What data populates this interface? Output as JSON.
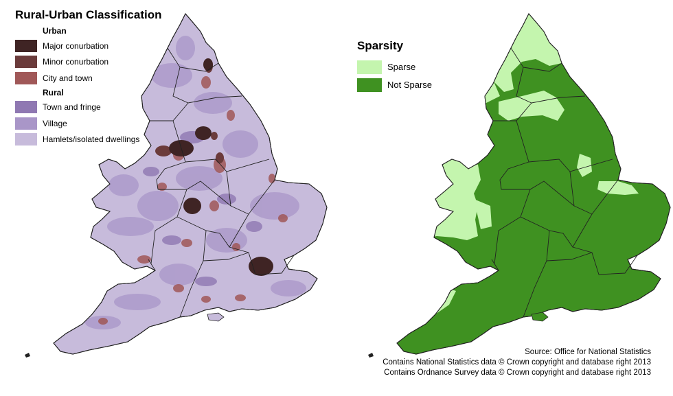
{
  "left_map": {
    "title": "Rural-Urban Classification",
    "legend": {
      "groups": [
        {
          "heading": "Urban",
          "items": [
            {
              "label": "Major conurbation",
              "color": "#3f2424"
            },
            {
              "label": "Minor conurbation",
              "color": "#6b3b3b"
            },
            {
              "label": "City and town",
              "color": "#a05858"
            }
          ]
        },
        {
          "heading": "Rural",
          "items": [
            {
              "label": "Town and fringe",
              "color": "#8f78b2"
            },
            {
              "label": "Village",
              "color": "#a996c8"
            },
            {
              "label": "Hamlets/isolated dwellings",
              "color": "#c7bbdb"
            }
          ]
        }
      ]
    }
  },
  "right_map": {
    "title": "Sparsity",
    "legend": {
      "items": [
        {
          "label": "Sparse",
          "color": "#c4f5ae"
        },
        {
          "label": "Not Sparse",
          "color": "#3f9121"
        }
      ]
    }
  },
  "source": {
    "line1": "Source: Office for National Statistics",
    "line2": "Contains National Statistics data © Crown copyright and database right 2013",
    "line3": "Contains Ordnance Survey data © Crown copyright and database right 2013"
  }
}
